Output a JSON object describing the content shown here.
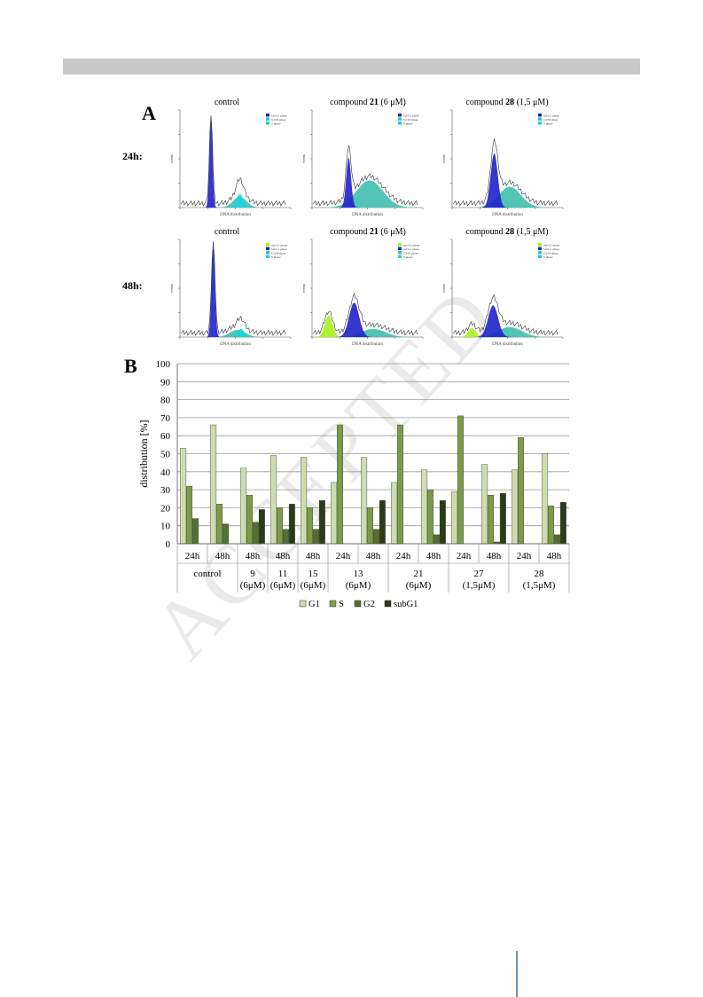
{
  "panel_a": {
    "label": "A",
    "row_labels": [
      "24h:",
      "48h:"
    ],
    "column_titles": [
      {
        "prefix": "control",
        "bold": "",
        "suffix": ""
      },
      {
        "prefix": "compound ",
        "bold": "21",
        "suffix": " (6 μM)"
      },
      {
        "prefix": "compound ",
        "bold": "28",
        "suffix": " (1,5 μM)"
      }
    ],
    "x_axis_label": "DNA distribution",
    "y_axis_label": "events",
    "legend_24h": [
      "G0/G1 phase",
      "G2/M phase",
      "S phase"
    ],
    "legend_48h": [
      "sub G1 phase",
      "G0/G1 phase",
      "G2/M phase",
      "S phase"
    ],
    "colors": {
      "g1": "#1f22c8",
      "s": "#3fbfae",
      "g2": "#16d4d8",
      "subg1": "#a6f21c"
    }
  },
  "panel_b_label": "B",
  "chart_data": {
    "type": "bar",
    "ylabel": "distribution [%]",
    "ylim": [
      0,
      100
    ],
    "yticks": [
      0,
      10,
      20,
      30,
      40,
      50,
      60,
      70,
      80,
      90,
      100
    ],
    "grid": true,
    "legend_position": "bottom",
    "categories": [
      "24h",
      "48h",
      "48h",
      "48h",
      "48h",
      "24h",
      "48h",
      "24h",
      "48h",
      "24h",
      "48h",
      "24h",
      "48h"
    ],
    "groups": [
      {
        "label": [
          "control"
        ],
        "span": 2
      },
      {
        "label": [
          "9",
          "(6μM)"
        ],
        "span": 1
      },
      {
        "label": [
          "11",
          "(6μM)"
        ],
        "span": 1
      },
      {
        "label": [
          "15",
          "(6μM)"
        ],
        "span": 1
      },
      {
        "label": [
          "13",
          "(6μM)"
        ],
        "span": 2
      },
      {
        "label": [
          "21",
          "(6μM)"
        ],
        "span": 2
      },
      {
        "label": [
          "27",
          "(1,5μM)"
        ],
        "span": 2
      },
      {
        "label": [
          "28",
          "(1,5μM)"
        ],
        "span": 2
      }
    ],
    "series": [
      {
        "name": "G1",
        "color": "#cfdcb3",
        "values": [
          53,
          66,
          42,
          49,
          48,
          34,
          48,
          34,
          41,
          29,
          44,
          41,
          50
        ]
      },
      {
        "name": "S",
        "color": "#7d9a4c",
        "values": [
          32,
          22,
          27,
          20,
          20,
          66,
          20,
          66,
          30,
          71,
          27,
          59,
          21
        ]
      },
      {
        "name": "G2",
        "color": "#556f33",
        "values": [
          14,
          11,
          12,
          8,
          8,
          0,
          8,
          0,
          5,
          0,
          1,
          0,
          5
        ]
      },
      {
        "name": "subG1",
        "color": "#2a3a1a",
        "values": [
          0,
          0,
          19,
          22,
          24,
          0,
          24,
          0,
          24,
          0,
          28,
          0,
          23
        ]
      }
    ]
  }
}
